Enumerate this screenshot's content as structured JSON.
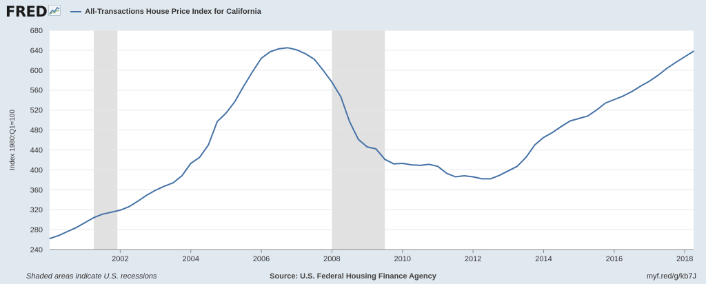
{
  "header": {
    "logo_text": "FRED",
    "logo_icon": "line-chart-icon",
    "series_title": "All-Transactions House Price Index for California"
  },
  "footer": {
    "recession_note": "Shaded areas indicate U.S. recessions",
    "source": "Source: U.S. Federal Housing Finance Agency",
    "short_link": "myf.red/g/kb7J"
  },
  "colors": {
    "line": "#4572a7",
    "recession": "#e1e1e1",
    "grid": "#e6e6e6",
    "page_bg": "#e1e9f0",
    "plot_bg": "#ffffff"
  },
  "chart_data": {
    "type": "line",
    "title": "All-Transactions House Price Index for California",
    "ylabel": "Index 1980:Q1=100",
    "xlabel": "",
    "xlim": [
      2000.0,
      2018.25
    ],
    "ylim": [
      240,
      680
    ],
    "yticks": [
      240,
      280,
      320,
      360,
      400,
      440,
      480,
      520,
      560,
      600,
      640,
      680
    ],
    "xticks": [
      2002,
      2004,
      2006,
      2008,
      2010,
      2012,
      2014,
      2016,
      2018
    ],
    "grid": true,
    "legend": "top-left",
    "recessions": [
      [
        2001.25,
        2001.92
      ],
      [
        2008.0,
        2009.5
      ]
    ],
    "series": [
      {
        "name": "All-Transactions House Price Index for California",
        "x": [
          2000.0,
          2000.25,
          2000.5,
          2000.75,
          2001.0,
          2001.25,
          2001.5,
          2001.75,
          2002.0,
          2002.25,
          2002.5,
          2002.75,
          2003.0,
          2003.25,
          2003.5,
          2003.75,
          2004.0,
          2004.25,
          2004.5,
          2004.75,
          2005.0,
          2005.25,
          2005.5,
          2005.75,
          2006.0,
          2006.25,
          2006.5,
          2006.75,
          2007.0,
          2007.25,
          2007.5,
          2007.75,
          2008.0,
          2008.25,
          2008.5,
          2008.75,
          2009.0,
          2009.25,
          2009.5,
          2009.75,
          2010.0,
          2010.25,
          2010.5,
          2010.75,
          2011.0,
          2011.25,
          2011.5,
          2011.75,
          2012.0,
          2012.25,
          2012.5,
          2012.75,
          2013.0,
          2013.25,
          2013.5,
          2013.75,
          2014.0,
          2014.25,
          2014.5,
          2014.75,
          2015.0,
          2015.25,
          2015.5,
          2015.75,
          2016.0,
          2016.25,
          2016.5,
          2016.75,
          2017.0,
          2017.25,
          2017.5,
          2017.75,
          2018.0,
          2018.25
        ],
        "y": [
          262,
          268,
          276,
          284,
          294,
          304,
          311,
          315,
          319,
          326,
          337,
          349,
          359,
          367,
          374,
          388,
          413,
          425,
          450,
          497,
          514,
          537,
          568,
          597,
          624,
          637,
          643,
          645,
          641,
          633,
          622,
          600,
          576,
          547,
          497,
          461,
          446,
          442,
          421,
          412,
          413,
          410,
          409,
          411,
          407,
          393,
          386,
          388,
          386,
          382,
          382,
          389,
          398,
          407,
          425,
          450,
          465,
          475,
          487,
          498,
          503,
          508,
          520,
          534,
          541,
          548,
          557,
          568,
          578,
          590,
          604,
          616,
          627,
          638
        ]
      }
    ]
  }
}
